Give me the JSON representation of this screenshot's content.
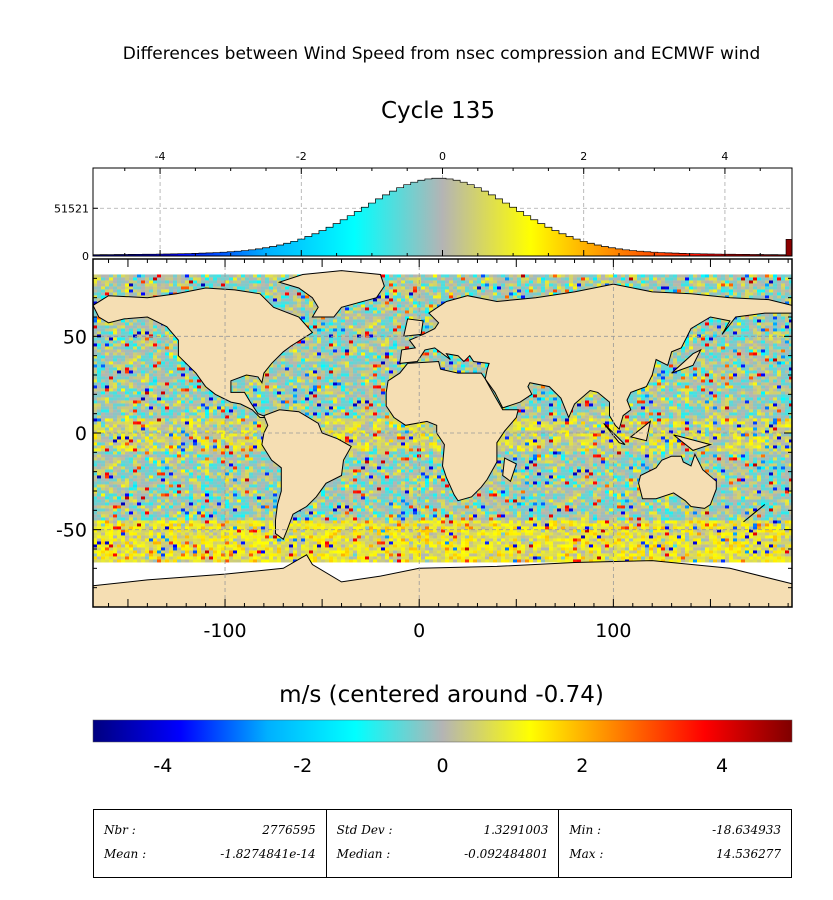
{
  "header": {
    "title": "Differences between Wind Speed from nsec compression and ECMWF wind",
    "subtitle": "Cycle 135"
  },
  "chart_data": [
    {
      "type": "bar",
      "role": "histogram",
      "x_range": [
        -4.95,
        4.95
      ],
      "x_ticks": [
        -4,
        -2,
        0,
        2,
        4
      ],
      "x_tick_labels": [
        "-4",
        "-2",
        "0",
        "2",
        "4"
      ],
      "y_ticks": [
        0,
        51521
      ],
      "y_tick_labels": [
        "0",
        "51521"
      ],
      "ylim": [
        0,
        95000
      ],
      "peak_x": -0.05,
      "peak_value": 84000,
      "overflow_bin_value": 18000,
      "grid": true
    },
    {
      "type": "heatmap",
      "role": "map",
      "x_range": [
        -168,
        192
      ],
      "y_range": [
        -90,
        90
      ],
      "x_ticks": [
        -100,
        0,
        100
      ],
      "x_tick_labels": [
        "-100",
        "0",
        "100"
      ],
      "y_ticks": [
        -50,
        0,
        50
      ],
      "y_tick_labels": [
        "-50",
        "0",
        "50"
      ],
      "data_lat_range": [
        -66,
        82
      ],
      "grid": true
    }
  ],
  "colorbar": {
    "label": "m/s (centered around -0.74)",
    "range": [
      -5,
      5
    ],
    "ticks": [
      -4,
      -2,
      0,
      2,
      4
    ],
    "tick_labels": [
      "-4",
      "-2",
      "0",
      "2",
      "4"
    ],
    "colors": [
      "#00007f",
      "#0000ff",
      "#00b0ff",
      "#00ffff",
      "#b4b4b4",
      "#ffff00",
      "#ff8000",
      "#ff0000",
      "#7f0000"
    ]
  },
  "stats": [
    {
      "label": "Nbr :",
      "value": "2776595"
    },
    {
      "label": "Mean :",
      "value": "-1.8274841e-14"
    },
    {
      "label": "Std Dev :",
      "value": "1.3291003"
    },
    {
      "label": "Median :",
      "value": "-0.092484801"
    },
    {
      "label": "Min :",
      "value": "-18.634933"
    },
    {
      "label": "Max :",
      "value": "14.536277"
    }
  ]
}
